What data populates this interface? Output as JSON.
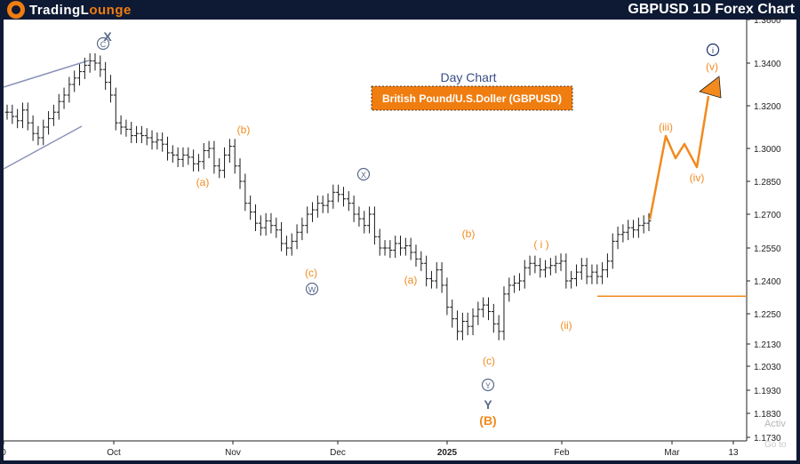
{
  "header": {
    "brand_left": "TradingL",
    "brand_right": "ounge",
    "title": "GBPUSD 1D Forex Chart"
  },
  "chart_data": {
    "type": "candlestick-ohlc",
    "subtitle": "Day Chart",
    "instrument_label": "British Pound/U.S.Doller (GBPUSD)",
    "y_ticks": [
      "1.3600",
      "1.3400",
      "1.3200",
      "1.3000",
      "1.2850",
      "1.2700",
      "1.2550",
      "1.2400",
      "1.2250",
      "1.2130",
      "1.2030",
      "1.1930",
      "1.1830",
      "1.1730"
    ],
    "x_ticks": [
      "0",
      "Oct",
      "Nov",
      "Dec",
      "2025",
      "Feb",
      "Mar",
      "13"
    ],
    "bars_close": [
      1.317,
      1.315,
      1.313,
      1.318,
      1.312,
      1.307,
      1.305,
      1.31,
      1.314,
      1.317,
      1.322,
      1.325,
      1.33,
      1.333,
      1.336,
      1.339,
      1.341,
      1.34,
      1.337,
      1.331,
      1.325,
      1.312,
      1.31,
      1.309,
      1.306,
      1.307,
      1.306,
      1.305,
      1.303,
      1.304,
      1.302,
      1.298,
      1.297,
      1.295,
      1.297,
      1.296,
      1.293,
      1.294,
      1.299,
      1.3,
      1.292,
      1.29,
      1.297,
      1.301,
      1.292,
      1.285,
      1.275,
      1.271,
      1.266,
      1.264,
      1.267,
      1.265,
      1.263,
      1.257,
      1.255,
      1.258,
      1.262,
      1.265,
      1.27,
      1.272,
      1.275,
      1.274,
      1.276,
      1.28,
      1.279,
      1.277,
      1.275,
      1.27,
      1.268,
      1.265,
      1.27,
      1.26,
      1.255,
      1.255,
      1.254,
      1.257,
      1.255,
      1.256,
      1.253,
      1.25,
      1.248,
      1.241,
      1.24,
      1.245,
      1.238,
      1.228,
      1.223,
      1.218,
      1.222,
      1.22,
      1.224,
      1.227,
      1.229,
      1.226,
      1.221,
      1.218,
      1.234,
      1.238,
      1.239,
      1.24,
      1.246,
      1.248,
      1.247,
      1.245,
      1.246,
      1.247,
      1.248,
      1.249,
      1.24,
      1.241,
      1.244,
      1.247,
      1.242,
      1.244,
      1.242,
      1.245,
      1.249,
      1.258,
      1.261,
      1.262,
      1.264,
      1.263,
      1.265,
      1.266,
      1.267
    ],
    "horizontal_level": 1.233,
    "projection": {
      "labels": [
        "(iii)",
        "(iv)",
        "(v)"
      ],
      "values": [
        1.305,
        1.29,
        1.333
      ]
    },
    "annotations": [
      {
        "text": "X",
        "color": "gray"
      },
      {
        "text": "(b)",
        "color": "orange"
      },
      {
        "text": "(a)",
        "color": "orange"
      },
      {
        "text": "(c)",
        "color": "orange"
      },
      {
        "text": "X",
        "color": "gray",
        "circled": true
      },
      {
        "text": "W",
        "color": "gray",
        "circled": true
      },
      {
        "text": "(b)",
        "color": "orange"
      },
      {
        "text": "(a)",
        "color": "orange"
      },
      {
        "text": "(c)",
        "color": "orange"
      },
      {
        "text": "Y",
        "color": "gray",
        "circled": true
      },
      {
        "text": "Y",
        "color": "gray"
      },
      {
        "text": "(B)",
        "color": "orange"
      },
      {
        "text": "( i )",
        "color": "orange"
      },
      {
        "text": "(ii)",
        "color": "orange"
      },
      {
        "text": "(iii)",
        "color": "orange"
      },
      {
        "text": "(iv)",
        "color": "orange"
      },
      {
        "text": "(v)",
        "color": "orange"
      },
      {
        "text": "i",
        "color": "navy",
        "circled": true
      },
      {
        "text": "C",
        "color": "gray",
        "circled": true
      }
    ],
    "colors": {
      "bars": "#1a1a1a",
      "wave": "#f28a1e",
      "corrective": "#5a6a8a",
      "channel": "#8a93b8",
      "accent": "#f07d10"
    }
  }
}
